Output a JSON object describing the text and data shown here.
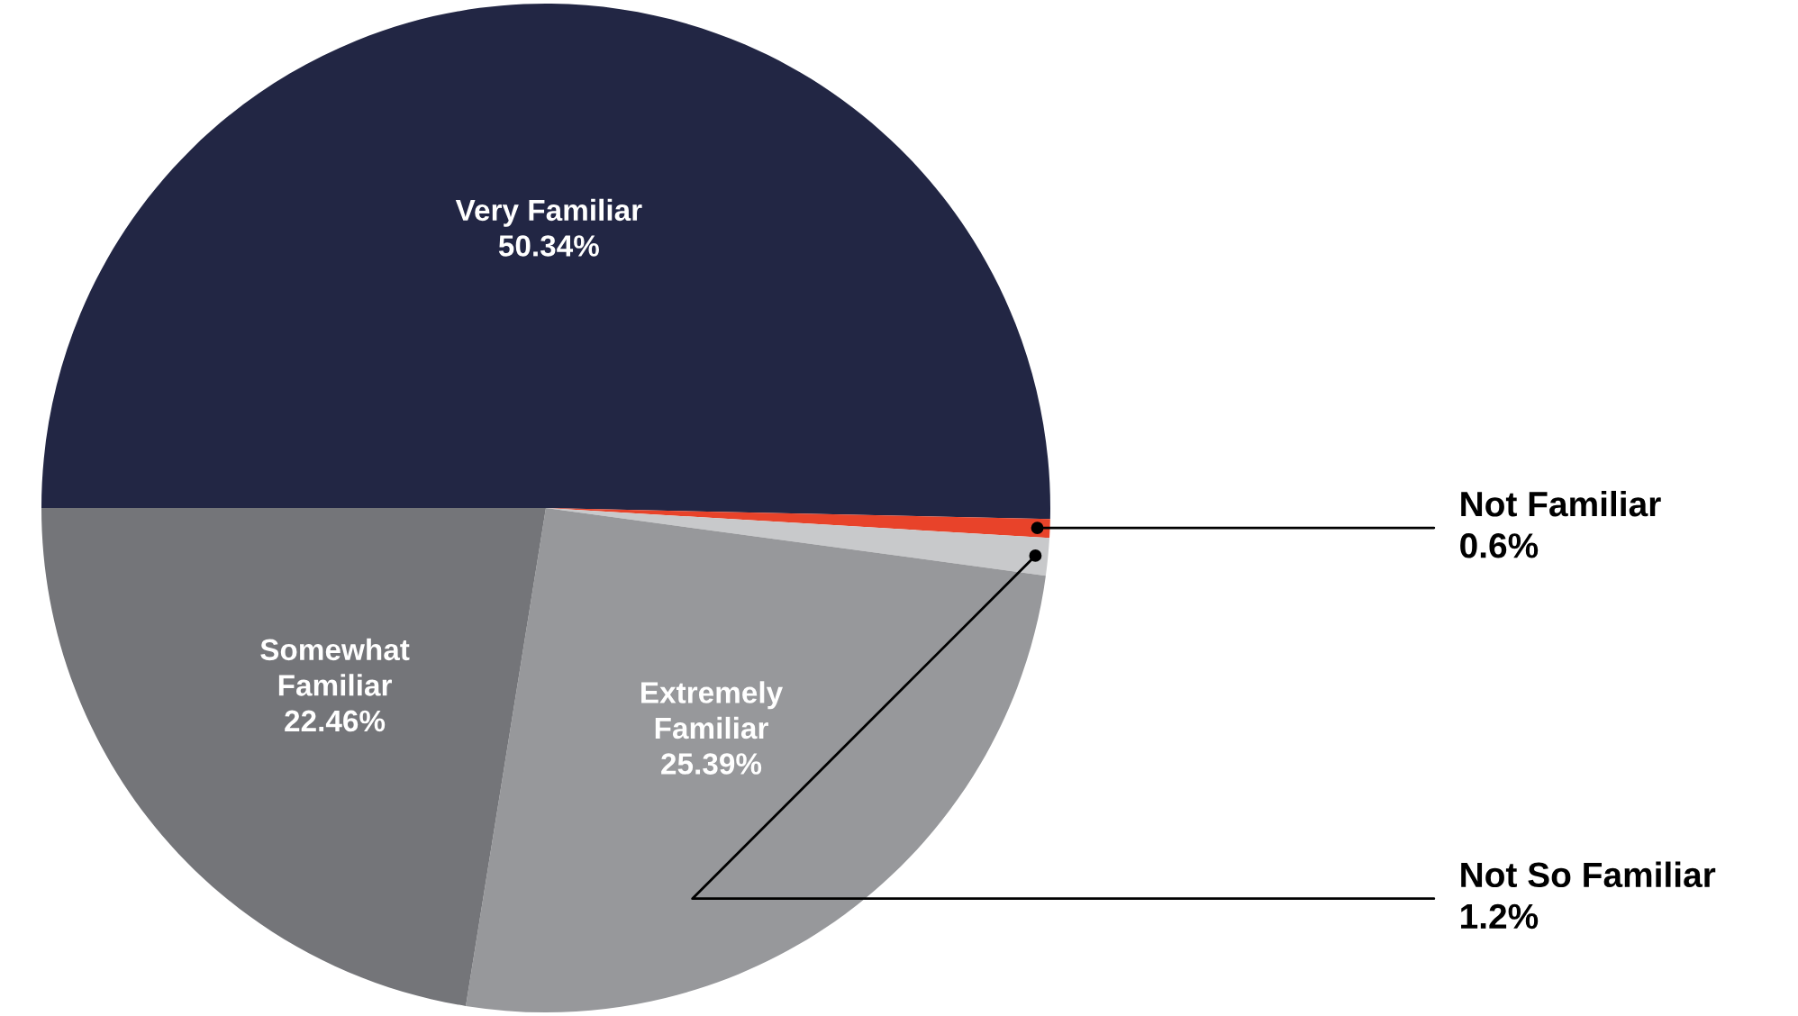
{
  "chart_data": {
    "type": "pie",
    "categories": [
      "Very Familiar",
      "Not Familiar",
      "Not So Familiar",
      "Extremely\nFamiliar",
      "Somewhat\nFamiliar"
    ],
    "values": [
      50.34,
      0.6,
      1.2,
      25.39,
      22.46
    ],
    "value_labels": [
      "50.34%",
      "0.6%",
      "1.2%",
      "25.39%",
      "22.46%"
    ],
    "colors": [
      "#222644",
      "#e8432a",
      "#c8c9cb",
      "#97989b",
      "#747579"
    ]
  }
}
